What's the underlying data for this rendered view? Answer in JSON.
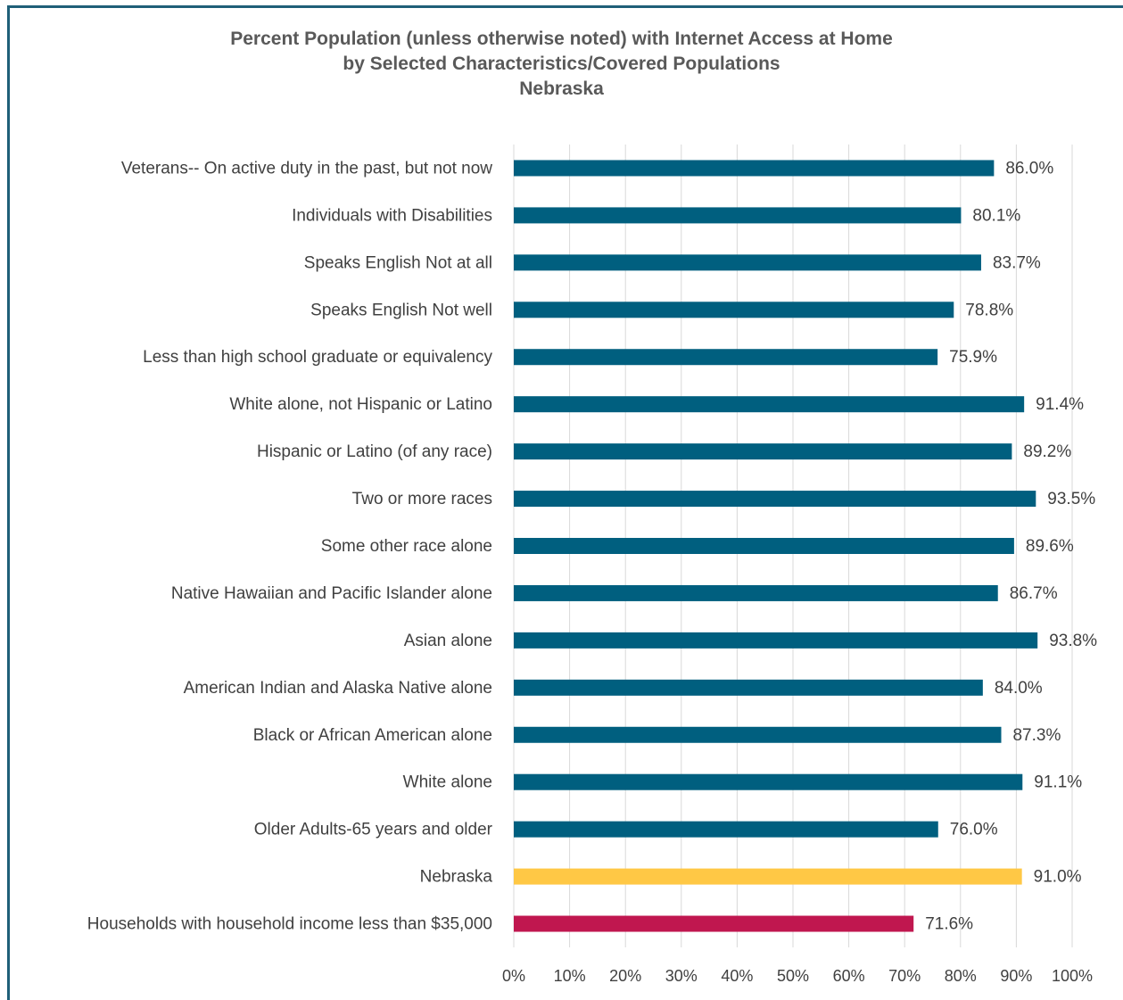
{
  "chart_data": {
    "type": "bar",
    "orientation": "horizontal",
    "title": [
      "Percent Population (unless otherwise noted) with Internet Access at Home",
      "by Selected Characteristics/Covered Populations",
      "Nebraska"
    ],
    "categories": [
      "Veterans-- On active duty in the past, but not now",
      "Individuals with Disabilities",
      "Speaks English Not at all",
      "Speaks English Not well",
      "Less than high school graduate or equivalency",
      "White alone, not Hispanic or Latino",
      "Hispanic or Latino (of any race)",
      "Two or more races",
      "Some other race alone",
      "Native Hawaiian and Pacific Islander alone",
      "Asian alone",
      "American Indian and Alaska Native alone",
      "Black or African American alone",
      "White alone",
      "Older Adults-65 years and older",
      "Nebraska",
      "Households with household income less than $35,000"
    ],
    "values": [
      86.0,
      80.1,
      83.7,
      78.8,
      75.9,
      91.4,
      89.2,
      93.5,
      89.6,
      86.7,
      93.8,
      84.0,
      87.3,
      91.1,
      76.0,
      91.0,
      71.6
    ],
    "value_labels": [
      "86.0%",
      "80.1%",
      "83.7%",
      "78.8%",
      "75.9%",
      "91.4%",
      "89.2%",
      "93.5%",
      "89.6%",
      "86.7%",
      "93.8%",
      "84.0%",
      "87.3%",
      "91.1%",
      "76.0%",
      "91.0%",
      "71.6%"
    ],
    "bar_colors": [
      "#005f7f",
      "#005f7f",
      "#005f7f",
      "#005f7f",
      "#005f7f",
      "#005f7f",
      "#005f7f",
      "#005f7f",
      "#005f7f",
      "#005f7f",
      "#005f7f",
      "#005f7f",
      "#005f7f",
      "#005f7f",
      "#005f7f",
      "#ffc845",
      "#c0174f"
    ],
    "xlim": [
      0,
      100
    ],
    "xticks": [
      0,
      10,
      20,
      30,
      40,
      50,
      60,
      70,
      80,
      90,
      100
    ],
    "xtick_labels": [
      "0%",
      "10%",
      "20%",
      "30%",
      "40%",
      "50%",
      "60%",
      "70%",
      "80%",
      "90%",
      "100%"
    ],
    "grid": true,
    "legend": "none"
  }
}
